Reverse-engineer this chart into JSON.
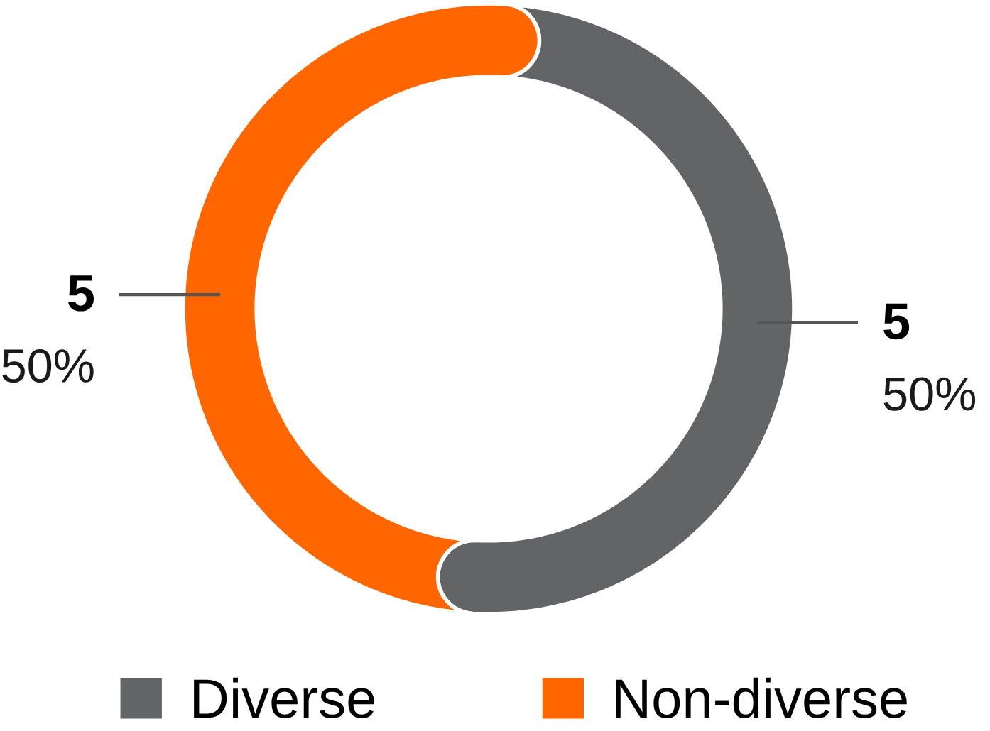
{
  "chart_data": {
    "type": "donut",
    "categories": [
      "Diverse",
      "Non-diverse"
    ],
    "values": [
      5,
      5
    ],
    "colors": [
      "#636466",
      "#ff6600"
    ],
    "data_labels": true,
    "annotations": [
      {
        "text": "50%",
        "x": "Diverse"
      },
      {
        "text": "50%",
        "x": "Non-diverse"
      }
    ],
    "legend": "bottom"
  }
}
